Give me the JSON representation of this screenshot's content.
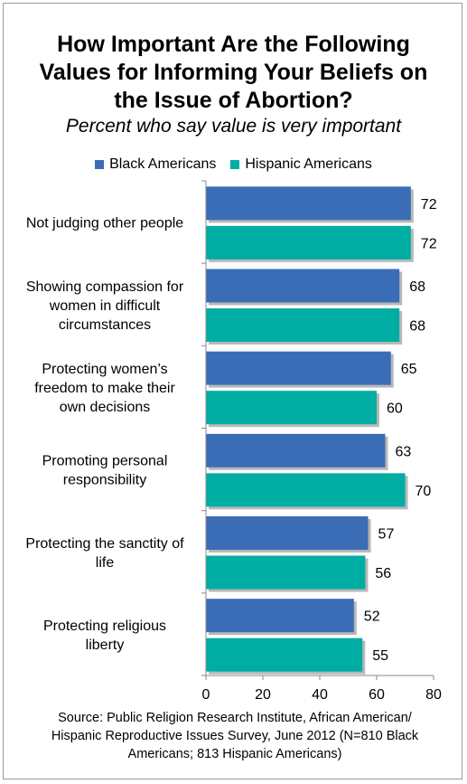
{
  "title_lines": [
    "How Important Are the Following",
    "Values for Informing Your Beliefs on",
    "the Issue of Abortion?"
  ],
  "subtitle": "Percent who say value is very important",
  "legend": [
    {
      "label": "Black Americans",
      "color": "#3A6DB5"
    },
    {
      "label": "Hispanic Americans",
      "color": "#00ADA3"
    }
  ],
  "source_lines": [
    "Source: Public Religion Research Institute, African American/",
    "Hispanic Reproductive Issues Survey, June 2012 (N=810 Black",
    "Americans; 813 Hispanic Americans)"
  ],
  "chart_data": {
    "type": "bar",
    "orientation": "horizontal",
    "categories": [
      [
        "Not judging other people"
      ],
      [
        "Showing compassion for",
        "women in difficult",
        "circumstances"
      ],
      [
        "Protecting women’s",
        "freedom to make their",
        "own decisions"
      ],
      [
        "Promoting personal",
        "responsibility"
      ],
      [
        "Protecting the sanctity of",
        "life"
      ],
      [
        "Protecting religious",
        "liberty"
      ]
    ],
    "series": [
      {
        "name": "Black Americans",
        "color": "#3A6DB5",
        "values": [
          72,
          68,
          65,
          63,
          57,
          52
        ]
      },
      {
        "name": "Hispanic Americans",
        "color": "#00ADA3",
        "values": [
          72,
          68,
          60,
          70,
          56,
          55
        ]
      }
    ],
    "xlim": [
      0,
      80
    ],
    "xticks": [
      0,
      20,
      40,
      60,
      80
    ],
    "grid": false,
    "legend_position": "top"
  }
}
